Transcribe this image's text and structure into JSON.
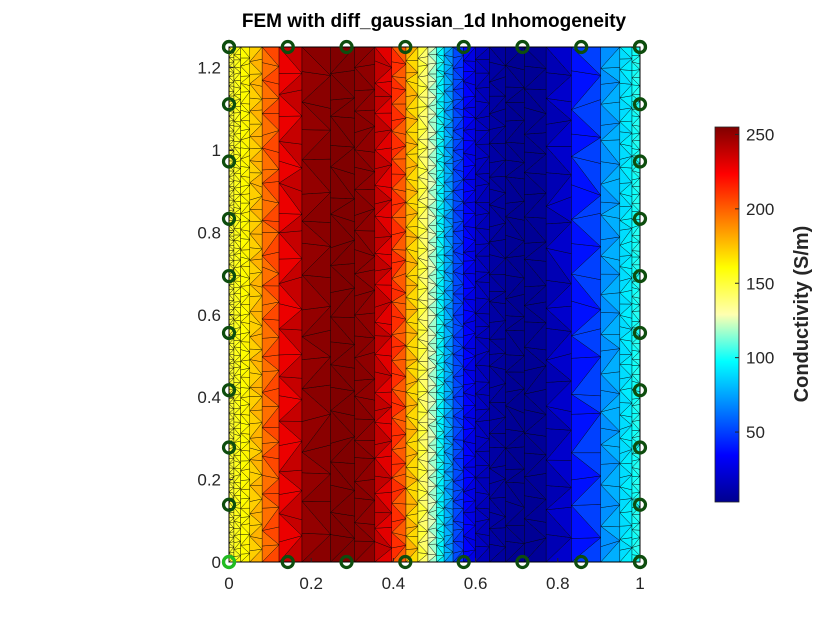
{
  "figure": {
    "title": "FEM with diff_gaussian_1d Inhomogeneity"
  },
  "chart_data": {
    "type": "heatmap",
    "title": "FEM with diff_gaussian_1d Inhomogeneity",
    "xlabel": "",
    "ylabel": "",
    "xlim": [
      0,
      1
    ],
    "ylim": [
      0,
      1.25
    ],
    "x_ticks": [
      0,
      0.2,
      0.4,
      0.6,
      0.8,
      1
    ],
    "x_tick_labels": [
      "0",
      "0.2",
      "0.4",
      "0.6",
      "0.8",
      "1"
    ],
    "y_ticks": [
      0,
      0.2,
      0.4,
      0.6,
      0.8,
      1,
      1.2
    ],
    "y_tick_labels": [
      "0",
      "0.2",
      "0.4",
      "0.6",
      "0.8",
      "1",
      "1.2"
    ],
    "colormap": "jet",
    "colorbar": {
      "label": "Conductivity (S/m)",
      "range": [
        3,
        255
      ],
      "ticks": [
        50,
        100,
        150,
        200,
        250
      ],
      "tick_labels": [
        "50",
        "100",
        "150",
        "200",
        "250"
      ]
    },
    "conductivity_profile_x": {
      "x": [
        0,
        0.05,
        0.1,
        0.15,
        0.2,
        0.25,
        0.3,
        0.35,
        0.4,
        0.45,
        0.5,
        0.55,
        0.6,
        0.65,
        0.7,
        0.75,
        0.8,
        0.85,
        0.9,
        0.95,
        1
      ],
      "conductivity": [
        150,
        165,
        200,
        235,
        250,
        255,
        255,
        250,
        220,
        170,
        115,
        55,
        20,
        8,
        4,
        5,
        15,
        35,
        60,
        85,
        105
      ]
    },
    "electrodes": {
      "marker": "circle",
      "color": "#0e4d0e",
      "reference_color": "#22bb22",
      "reference_position": [
        0,
        0
      ],
      "bottom_x": [
        0,
        0.143,
        0.286,
        0.429,
        0.571,
        0.714,
        0.857,
        1
      ],
      "top_x": [
        0,
        0.143,
        0.286,
        0.429,
        0.571,
        0.714,
        0.857,
        1
      ],
      "left_y": [
        0,
        0.139,
        0.278,
        0.417,
        0.556,
        0.694,
        0.833,
        0.972,
        1.111,
        1.25
      ],
      "right_y": [
        0,
        0.139,
        0.278,
        0.417,
        0.556,
        0.694,
        0.833,
        0.972,
        1.111,
        1.25
      ]
    },
    "mesh": "triangular, refined near the left and right edges and near the center band",
    "grid": false
  }
}
